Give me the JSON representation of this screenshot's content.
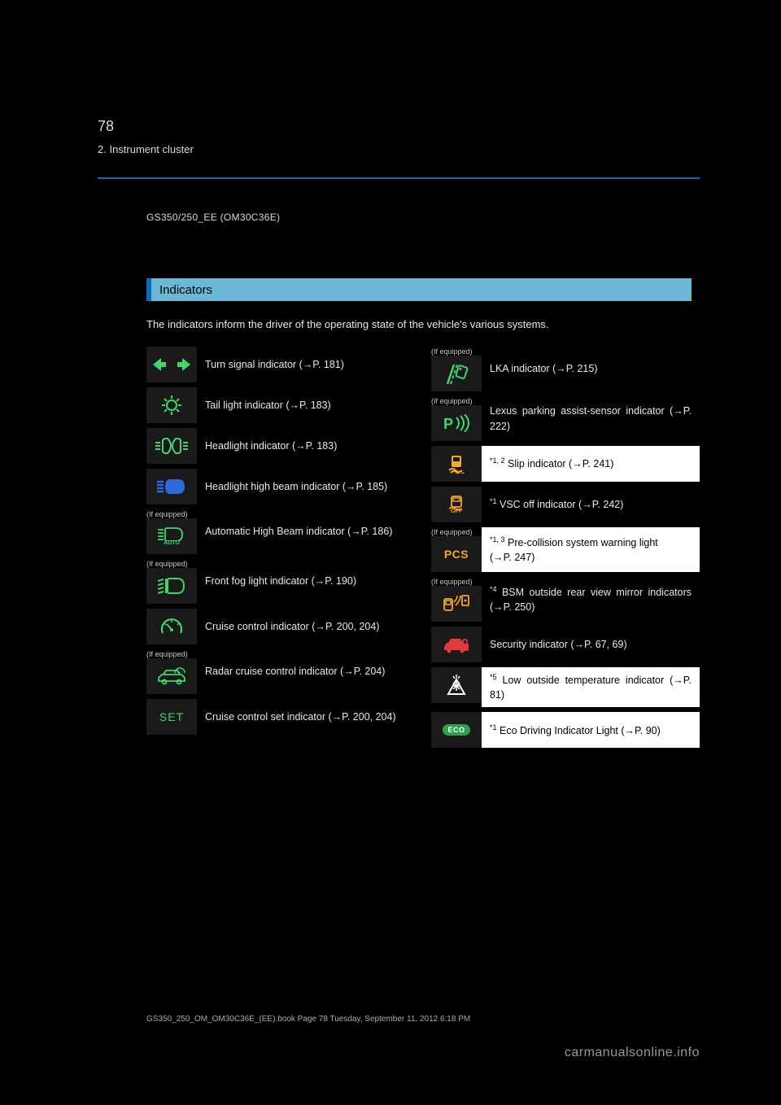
{
  "header": {
    "page_number": "78",
    "chapter_ref": "2. Instrument cluster",
    "model_line": "GS350/250_EE (OM30C36E)"
  },
  "section": {
    "title": "Indicators",
    "description": "The indicators inform the driver of the operating state of the vehicle's various systems."
  },
  "colors": {
    "bg": "#000000",
    "text": "#e8e8e8",
    "rule": "#0d6bb6",
    "bar_bg": "#6bb8d6",
    "bar_border": "#0d6bb6",
    "white": "#ffffff",
    "icon_bg": "#1a1a1a",
    "green": "#3fd66b",
    "amber": "#f7a824",
    "blue": "#2a6adb",
    "red": "#e03a3a",
    "eco": "#2ea24a",
    "footer": "#9a9a9a"
  },
  "left": [
    {
      "icon": "turn-signal",
      "text": "Turn signal indicator (→P. 181)"
    },
    {
      "icon": "tail-light",
      "text": "Tail light indicator (→P. 183)"
    },
    {
      "icon": "headlight",
      "text": "Headlight indicator (→P. 183)"
    },
    {
      "icon": "high-beam",
      "text": "Headlight high beam indicator (→P. 185)"
    },
    {
      "icon": "auto-high-beam",
      "text": "Automatic High Beam indicator (→P. 186)",
      "if_equipped": true
    },
    {
      "icon": "fog",
      "text": "Front fog light indicator (→P. 190)",
      "if_equipped": true
    },
    {
      "icon": "cruise",
      "text": "Cruise control indicator (→P. 200, 204)"
    },
    {
      "icon": "radar-cruise",
      "text": "Radar cruise control indicator (→P. 204)",
      "if_equipped": true
    },
    {
      "icon": "set",
      "text": "Cruise control set indicator (→P. 200, 204)"
    }
  ],
  "right": [
    {
      "icon": "lka",
      "text": "LKA indicator (→P. 215)",
      "if_equipped": true
    },
    {
      "icon": "park-assist",
      "text": "Lexus parking assist-sensor indicator (→P. 222)",
      "if_equipped": true
    },
    {
      "icon": "slip",
      "text": "Slip indicator (→P. 241)",
      "white": true,
      "sup": "*1, 2"
    },
    {
      "icon": "vsc-off",
      "text": "VSC off indicator (→P. 242)",
      "sup": "*1"
    },
    {
      "icon": "pcs",
      "text": "Pre-collision system warning light\n(→P. 247)",
      "white": true,
      "if_equipped": true,
      "sup": "*1, 3"
    },
    {
      "icon": "bsm",
      "text": "BSM outside rear view mirror indicators (→P. 250)",
      "if_equipped": true,
      "sup": "*4"
    },
    {
      "icon": "security",
      "text": "Security indicator (→P. 67, 69)"
    },
    {
      "icon": "low-temp",
      "text": "Low outside temperature indicator (→P. 81)",
      "white": true,
      "sup": "*5"
    },
    {
      "icon": "eco",
      "text": "Eco Driving Indicator Light (→P. 90)",
      "white": true,
      "sup": "*1"
    }
  ],
  "footer": {
    "src": "GS350_250_OM_OM30C36E_(EE).book  Page 78  Tuesday, September 11, 2012  6:18 PM",
    "site": "carmanualsonline.info"
  }
}
